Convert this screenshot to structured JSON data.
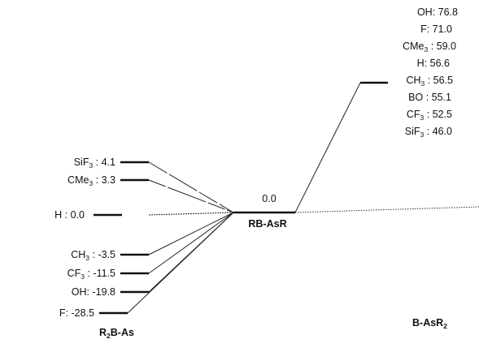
{
  "diagram": {
    "left_group": {
      "name": "R",
      "name_sub": "2",
      "name_rest": "B-As",
      "levels": [
        {
          "id": "sif3-left",
          "sub_label": "SiF",
          "sub": "3",
          "value": "4.1"
        },
        {
          "id": "cme3-left",
          "sub_label": "CMe",
          "sub": "3",
          "value": "3.3"
        },
        {
          "id": "h-left",
          "sub_label": "H",
          "sub": "",
          "value": "0.0"
        },
        {
          "id": "ch3-left",
          "sub_label": "CH",
          "sub": "3",
          "value": "-3.5"
        },
        {
          "id": "cf3-left",
          "sub_label": "CF",
          "sub": "3",
          "value": "-11.5"
        },
        {
          "id": "oh-left",
          "sub_label": "OH",
          "sub": "",
          "value": "-19.8"
        },
        {
          "id": "f-left",
          "sub_label": "F",
          "sub": "",
          "value": "-28.5"
        }
      ]
    },
    "center": {
      "value": "0.0",
      "name": "RB-AsR"
    },
    "right_group": {
      "name": "B-AsR",
      "name_sub": "2",
      "levels": [
        {
          "id": "oh-right",
          "sub_label": "OH",
          "sub": "",
          "value": "76.8"
        },
        {
          "id": "f-right",
          "sub_label": "F",
          "sub": "",
          "value": "71.0"
        },
        {
          "id": "cme3-right",
          "sub_label": "CMe",
          "sub": "3",
          "value": "59.0"
        },
        {
          "id": "h-right",
          "sub_label": "H",
          "sub": "",
          "value": "56.6"
        },
        {
          "id": "ch3-right",
          "sub_label": "CH",
          "sub": "3",
          "value": "56.5"
        },
        {
          "id": "bo-right",
          "sub_label": "BO",
          "sub": "",
          "value": "55.1"
        },
        {
          "id": "cf3-right",
          "sub_label": "CF",
          "sub": "3",
          "value": "52.5"
        },
        {
          "id": "sif3-right",
          "sub_label": "SiF",
          "sub": "3",
          "value": "46.0"
        }
      ]
    }
  }
}
